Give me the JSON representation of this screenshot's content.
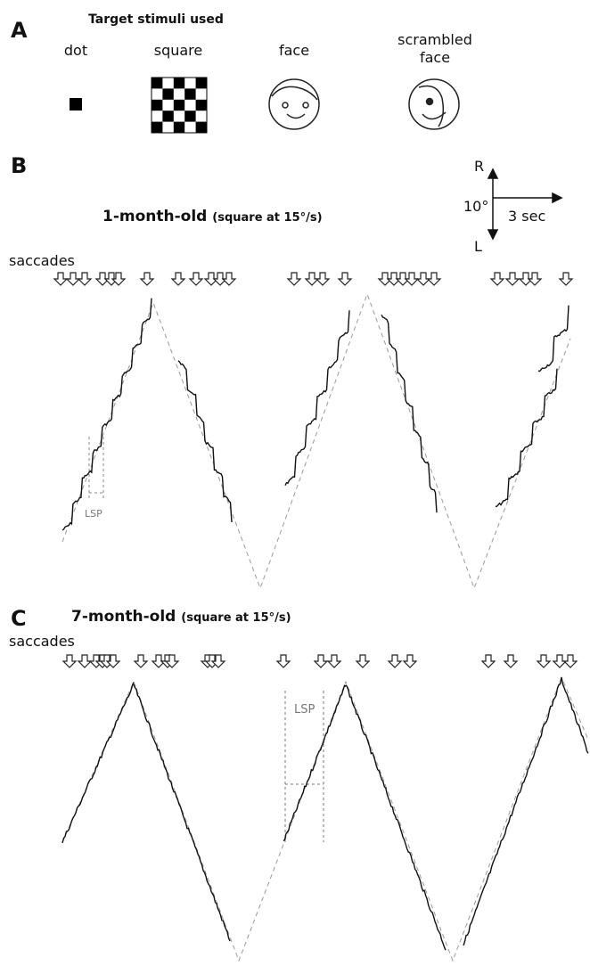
{
  "panel_a": {
    "label": "A",
    "title": "Target stimuli used",
    "stimuli": [
      "dot",
      "square",
      "face",
      "scrambled",
      "face"
    ]
  },
  "panel_b": {
    "label": "B",
    "title": "1-month-old",
    "subtitle": "(square at 15°/s)",
    "scale": {
      "up": "R",
      "down": "L",
      "vertical": "10°",
      "horizontal": "3 sec"
    },
    "saccades_label": "saccades",
    "lsp_label": "LSP"
  },
  "panel_c": {
    "label": "C",
    "title": "7-month-old",
    "subtitle": "(square at 15°/s)",
    "saccades_label": "saccades",
    "lsp_label": "LSP"
  }
}
